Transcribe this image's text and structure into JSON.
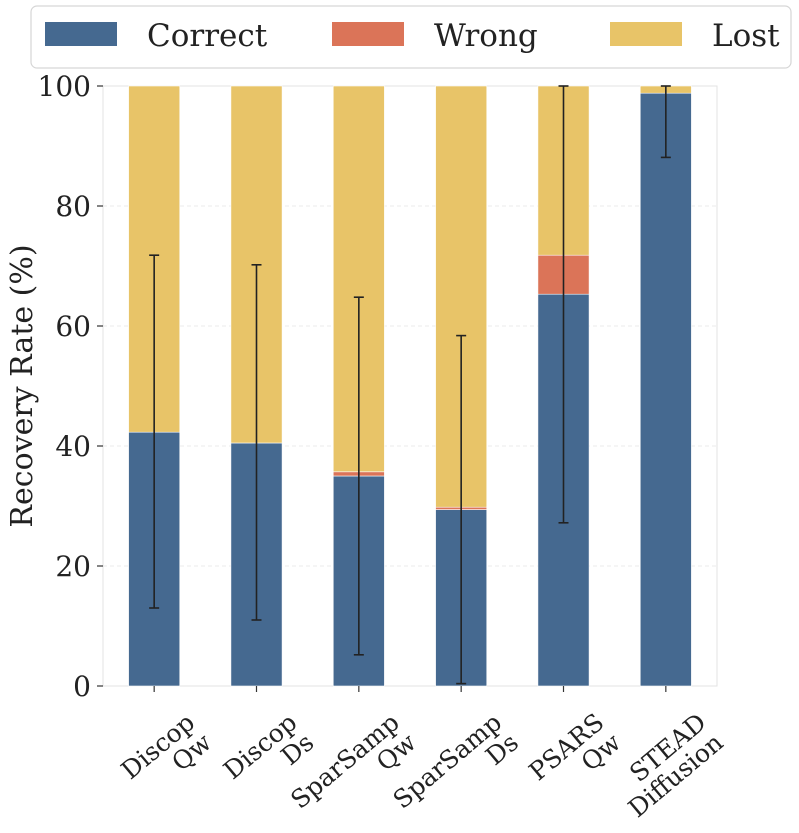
{
  "chart_data": {
    "type": "bar",
    "stacked": true,
    "categories": [
      [
        "Discop",
        "Qw"
      ],
      [
        "Discop",
        "Ds"
      ],
      [
        "SparSamp",
        "Qw"
      ],
      [
        "SparSamp",
        "Ds"
      ],
      [
        "PSARS",
        "Qw"
      ],
      [
        "STEAD",
        "Diffusion"
      ]
    ],
    "series": [
      {
        "name": "Correct",
        "color": "#456990",
        "values": [
          42.3,
          40.5,
          35.0,
          29.4,
          65.3,
          98.8
        ]
      },
      {
        "name": "Wrong",
        "color": "#DB7458",
        "values": [
          0.0,
          0.0,
          0.7,
          0.4,
          6.5,
          0.0
        ]
      },
      {
        "name": "Lost",
        "color": "#E8C468",
        "values": [
          57.7,
          59.5,
          64.3,
          70.2,
          28.2,
          1.2
        ]
      }
    ],
    "error_bars": [
      {
        "low": 13.0,
        "high": 71.8
      },
      {
        "low": 11.0,
        "high": 70.2
      },
      {
        "low": 5.2,
        "high": 64.8
      },
      {
        "low": 0.4,
        "high": 58.4
      },
      {
        "low": 27.2,
        "high": 100.0
      },
      {
        "low": 88.1,
        "high": 100.0
      }
    ],
    "xlabel": "",
    "ylabel": "Recovery Rate (%)",
    "ylim": [
      0,
      100
    ],
    "yticks": [
      0,
      20,
      40,
      60,
      80,
      100
    ],
    "grid": true,
    "legend": "top"
  }
}
